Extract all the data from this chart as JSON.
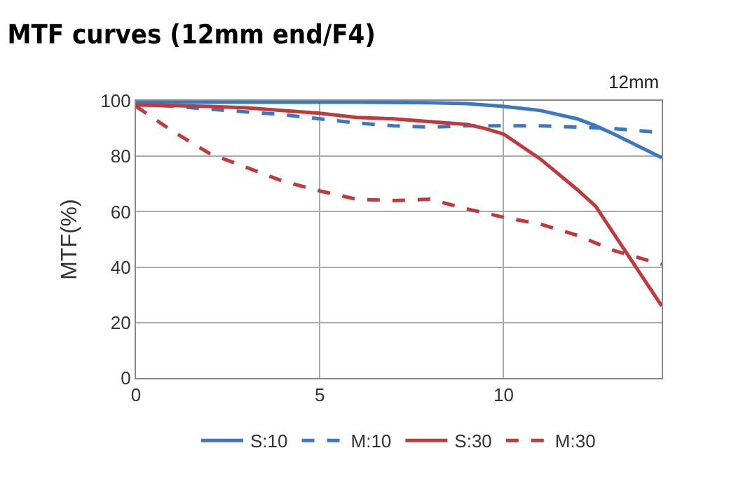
{
  "chart_data": {
    "type": "line",
    "title": "MTF curves (12mm end/F4)",
    "ylabel": "MTF(%)",
    "annotations": [
      "12mm"
    ],
    "series": [
      {
        "name": "S:10",
        "color": "#3a78c3",
        "line_style": "solid",
        "x": [
          0,
          2,
          4,
          6,
          8,
          9,
          10,
          11,
          12,
          12.5,
          13,
          14.3
        ],
        "values": [
          99.5,
          99.5,
          99.5,
          99.5,
          99.3,
          99,
          98,
          96.5,
          93.5,
          91,
          88,
          79.5
        ]
      },
      {
        "name": "M:10",
        "color": "#3a78c3",
        "line_style": "dashed",
        "x": [
          0,
          2,
          4,
          5,
          6,
          7,
          8,
          9,
          10,
          11,
          12,
          13,
          14.3
        ],
        "values": [
          99,
          97,
          95,
          93.5,
          92,
          91,
          90.5,
          91,
          91,
          91,
          90.5,
          90,
          88.5
        ]
      },
      {
        "name": "S:30",
        "color": "#c0393b",
        "line_style": "solid",
        "x": [
          0,
          2,
          3,
          5,
          6,
          7,
          8,
          9,
          9.5,
          10,
          11,
          12,
          12.5,
          13,
          14.3
        ],
        "values": [
          98.5,
          98,
          97.5,
          95.5,
          94,
          93.5,
          92.5,
          91.5,
          90,
          88,
          79,
          68,
          62,
          52,
          26
        ]
      },
      {
        "name": "M:30",
        "color": "#c0393b",
        "line_style": "dashed",
        "x": [
          0,
          1,
          2,
          3,
          4,
          5,
          6,
          7,
          8,
          9,
          10,
          11,
          12,
          13,
          14.3
        ],
        "values": [
          98,
          89,
          81,
          76,
          71,
          67.5,
          64.5,
          64,
          64.5,
          61,
          58,
          55.5,
          51.5,
          46,
          41
        ]
      }
    ],
    "xlim": [
      0,
      14.3
    ],
    "xticks": [
      0,
      5,
      10
    ],
    "ylim": [
      0,
      100
    ],
    "yticks": [
      0,
      20,
      40,
      60,
      80,
      100
    ],
    "grid": true,
    "legend": "bottom",
    "marker": "none"
  }
}
